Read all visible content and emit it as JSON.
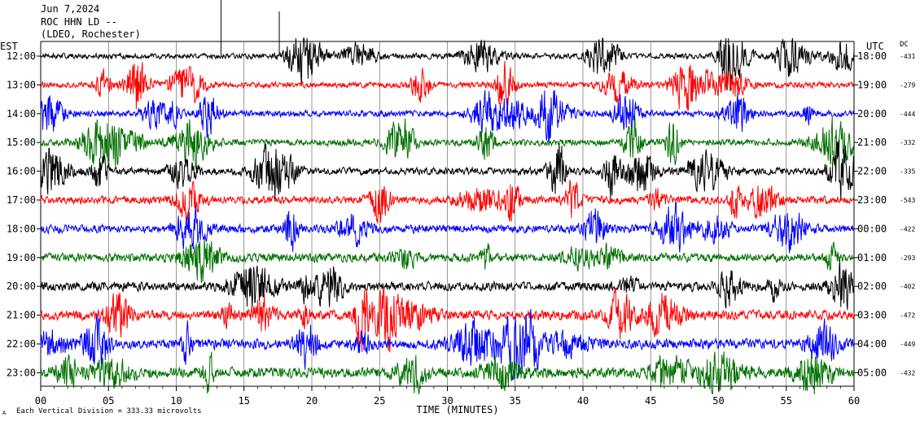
{
  "header": {
    "date": "Jun 7,2024",
    "station": "ROC HHN LD --",
    "network": "(LDEO, Rochester)"
  },
  "labels": {
    "left_tz": "EST",
    "right_tz": "UTC",
    "dc": "DC",
    "xlabel": "TIME (MINUTES)",
    "footer": "Each Vertical Division =  333.33 microvolts",
    "footer_mark": "A"
  },
  "chart_data": {
    "type": "line",
    "title": "ROC HHN LD --",
    "xlabel": "TIME (MINUTES)",
    "xlim": [
      0,
      60
    ],
    "x_ticks": [
      "00",
      "05",
      "10",
      "15",
      "20",
      "25",
      "30",
      "35",
      "40",
      "45",
      "50",
      "55",
      "60"
    ],
    "grid": "vertical lines every 5 minutes",
    "trace_colors": [
      "#000000",
      "#ff0000",
      "#0000ff",
      "#007000"
    ],
    "rows": [
      {
        "est": "12:00",
        "utc": "18:00",
        "dc": "-431"
      },
      {
        "est": "13:00",
        "utc": "19:00",
        "dc": "-279"
      },
      {
        "est": "14:00",
        "utc": "20:00",
        "dc": "-444"
      },
      {
        "est": "15:00",
        "utc": "21:00",
        "dc": "-332"
      },
      {
        "est": "16:00",
        "utc": "22:00",
        "dc": "-335"
      },
      {
        "est": "17:00",
        "utc": "23:00",
        "dc": "-543"
      },
      {
        "est": "18:00",
        "utc": "00:00",
        "dc": "-422"
      },
      {
        "est": "19:00",
        "utc": "01:00",
        "dc": "-293"
      },
      {
        "est": "20:00",
        "utc": "02:00",
        "dc": "-402"
      },
      {
        "est": "21:00",
        "utc": "03:00",
        "dc": "-472"
      },
      {
        "est": "22:00",
        "utc": "04:00",
        "dc": "-449"
      },
      {
        "est": "23:00",
        "utc": "05:00",
        "dc": "-432"
      }
    ],
    "vertical_division": "333.33 microvolts"
  }
}
